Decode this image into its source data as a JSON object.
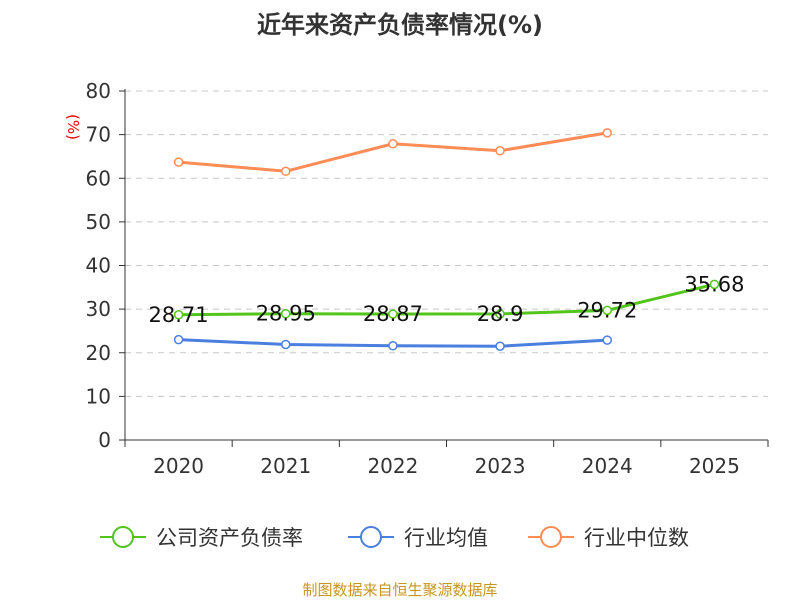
{
  "chart_data": {
    "type": "line",
    "title": "近年来资产负债率情况(%)",
    "ylabel": "(%)",
    "ylim": [
      0,
      80
    ],
    "yticks": [
      0,
      10,
      20,
      30,
      40,
      50,
      60,
      70,
      80
    ],
    "grid": true,
    "legend_position": "bottom",
    "categories": [
      "2020",
      "2021",
      "2022",
      "2023",
      "2024",
      "2025"
    ],
    "series": [
      {
        "name": "公司资产负债率",
        "color": "#52c41a",
        "values": [
          28.71,
          28.95,
          28.87,
          28.9,
          29.72,
          35.68
        ],
        "labels": [
          "28.71",
          "28.95",
          "28.87",
          "28.9",
          "29.72",
          "35.68"
        ]
      },
      {
        "name": "行业均值",
        "color": "#4a7fe0",
        "values": [
          23.0,
          21.9,
          21.6,
          21.5,
          22.9,
          null
        ]
      },
      {
        "name": "行业中位数",
        "color": "#ff8c55",
        "values": [
          63.7,
          61.6,
          67.9,
          66.3,
          70.4,
          null
        ]
      }
    ],
    "source": "制图数据来自恒生聚源数据库"
  }
}
